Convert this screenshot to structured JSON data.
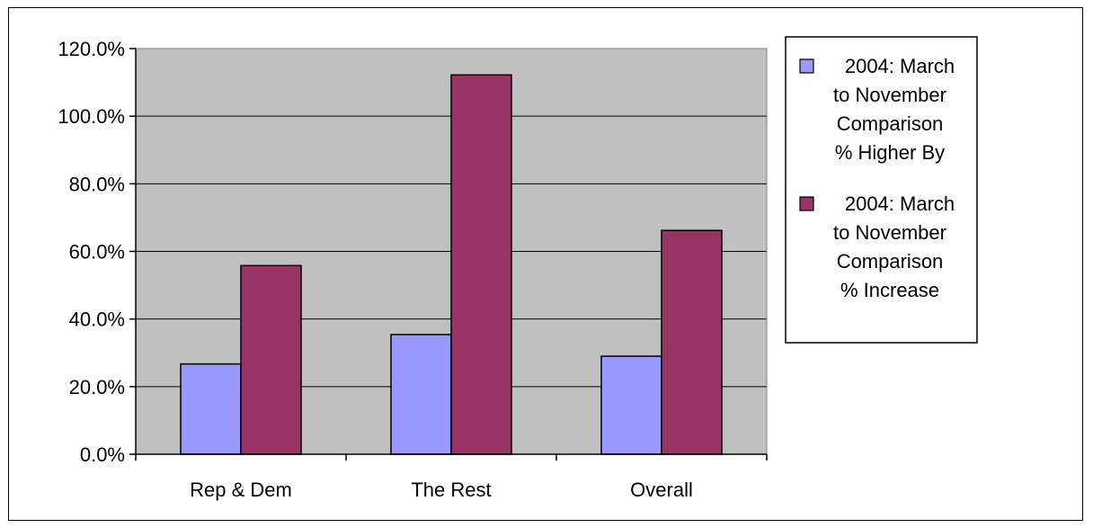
{
  "chart_data": {
    "type": "bar",
    "title": "",
    "xlabel": "",
    "ylabel": "",
    "categories": [
      "Rep & Dem",
      "The Rest",
      "Overall"
    ],
    "series": [
      {
        "name": "2004: March to November Comparison % Higher By",
        "legend_lines": [
          "2004: March",
          "to November",
          "Comparison",
          "% Higher By"
        ],
        "values": [
          26.7,
          35.4,
          29.0
        ],
        "color": "#9999ff"
      },
      {
        "name": "2004: March to November Comparison % Increase",
        "legend_lines": [
          "2004: March",
          "to November",
          "Comparison",
          "% Increase"
        ],
        "values": [
          55.8,
          112.2,
          66.2
        ],
        "color": "#993366"
      }
    ],
    "ylim": [
      0,
      120
    ],
    "yticks": [
      0,
      20,
      40,
      60,
      80,
      100,
      120
    ],
    "ytick_labels": [
      "0.0%",
      "20.0%",
      "40.0%",
      "60.0%",
      "80.0%",
      "100.0%",
      "120.0%"
    ],
    "grid": true,
    "plot_background": "#c0c0c0",
    "legend_position": "right"
  }
}
